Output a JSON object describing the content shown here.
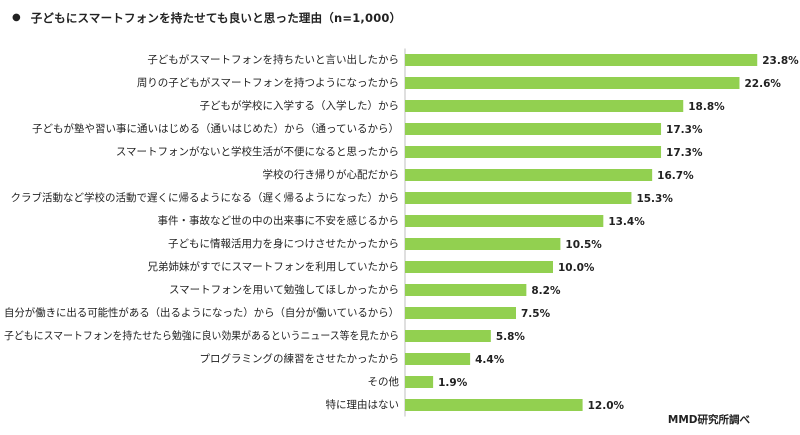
{
  "title": {
    "bullet": "●",
    "text": "子どもにスマートフォンを持たせても良いと思った理由（n=1,000）"
  },
  "source": "MMD研究所調べ",
  "colors": {
    "bar": "#92d050",
    "axis": "#bfbfbf",
    "text": "#222222"
  },
  "chart_data": {
    "type": "bar",
    "orientation": "horizontal",
    "title": "子どもにスマートフォンを持たせても良いと思った理由（n=1,000）",
    "xlabel": "",
    "ylabel": "",
    "unit": "%",
    "xlim": [
      0,
      25
    ],
    "categories": [
      "子どもがスマートフォンを持ちたいと言い出したから",
      "周りの子どもがスマートフォンを持つようになったから",
      "子どもが学校に入学する（入学した）から",
      "子どもが塾や習い事に通いはじめる（通いはじめた）から（通っているから）",
      "スマートフォンがないと学校生活が不便になると思ったから",
      "学校の行き帰りが心配だから",
      "クラブ活動など学校の活動で遅くに帰るようになる（遅く帰るようになった）から",
      "事件・事故など世の中の出来事に不安を感じるから",
      "子どもに情報活用力を身につけさせたかったから",
      "兄弟姉妹がすでにスマートフォンを利用していたから",
      "スマートフォンを用いて勉強してほしかったから",
      "自分が働きに出る可能性がある（出るようになった）から（自分が働いているから）",
      "子どもにスマートフォンを持たせたら勉強に良い効果があるというニュース等を見たから",
      "プログラミングの練習をさせたかったから",
      "その他",
      "特に理由はない"
    ],
    "values": [
      23.8,
      22.6,
      18.8,
      17.3,
      17.3,
      16.7,
      15.3,
      13.4,
      10.5,
      10.0,
      8.2,
      7.5,
      5.8,
      4.4,
      1.9,
      12.0
    ],
    "value_labels": [
      "23.8%",
      "22.6%",
      "18.8%",
      "17.3%",
      "17.3%",
      "16.7%",
      "15.3%",
      "13.4%",
      "10.5%",
      "10.0%",
      "8.2%",
      "7.5%",
      "5.8%",
      "4.4%",
      "1.9%",
      "12.0%"
    ]
  }
}
